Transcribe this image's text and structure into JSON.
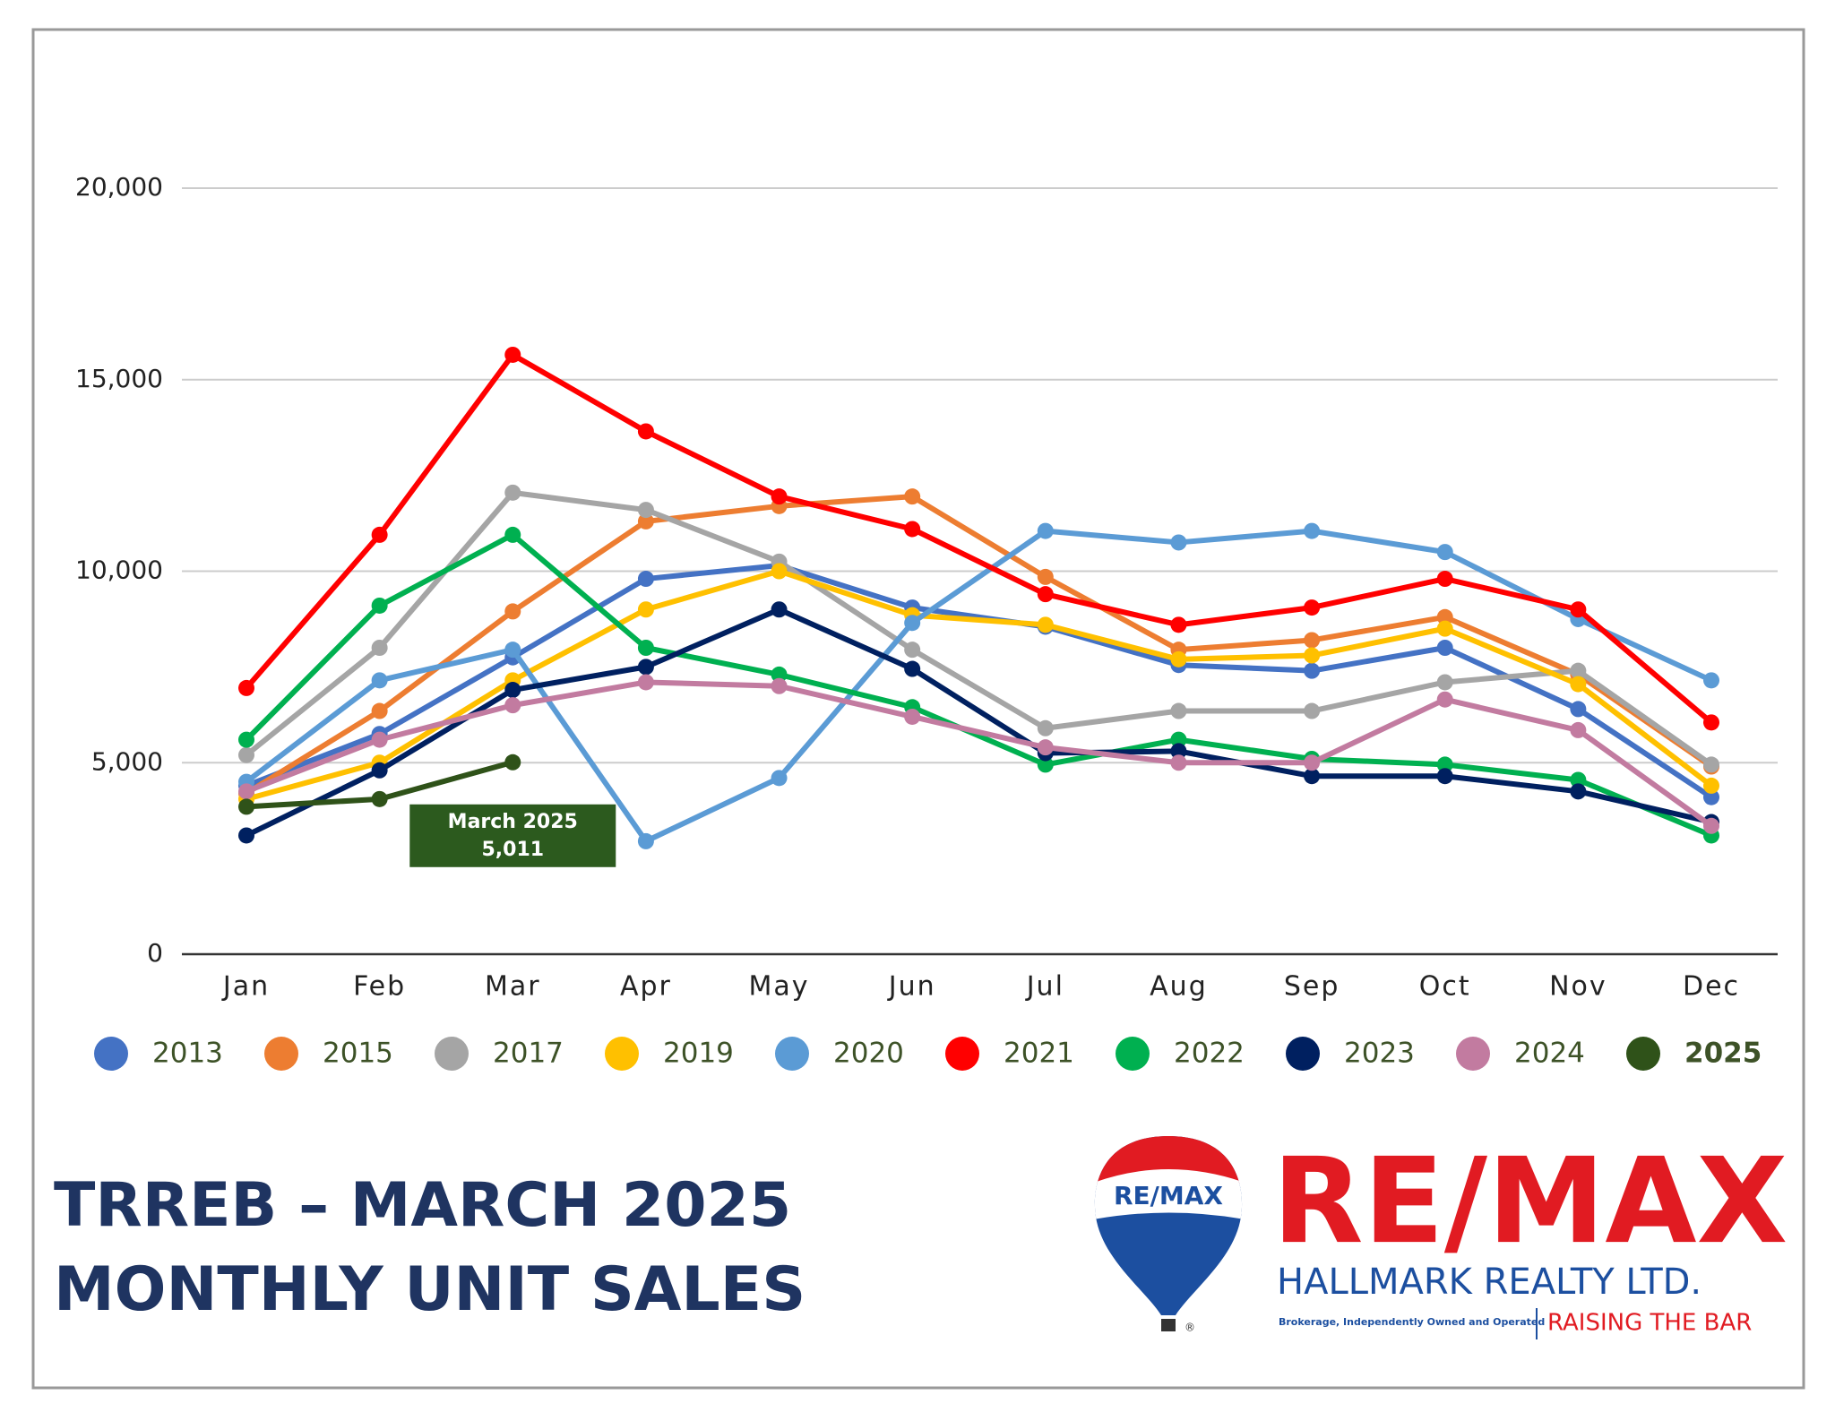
{
  "chart_data": {
    "type": "line",
    "categories": [
      "Jan",
      "Feb",
      "Mar",
      "Apr",
      "May",
      "Jun",
      "Jul",
      "Aug",
      "Sep",
      "Oct",
      "Nov",
      "Dec"
    ],
    "ylim": [
      0,
      20000
    ],
    "yticks": [
      0,
      {
        "value": 5000,
        "label": "5,000"
      },
      {
        "value": 10000,
        "label": "10,000"
      },
      {
        "value": 15000,
        "label": "15,000"
      },
      {
        "value": 20000,
        "label": "20,000"
      }
    ],
    "grid": true,
    "legend": "bottom",
    "series": [
      {
        "name": "2013",
        "color": "#4472c4",
        "values": [
          4400,
          5750,
          7750,
          9800,
          10150,
          9050,
          8550,
          7550,
          7400,
          8000,
          6400,
          4100
        ]
      },
      {
        "name": "2015",
        "color": "#ed7d31",
        "values": [
          4200,
          6350,
          8950,
          11300,
          11700,
          11950,
          9850,
          7950,
          8200,
          8800,
          7300,
          4900
        ]
      },
      {
        "name": "2017",
        "color": "#a5a5a5",
        "values": [
          5200,
          8000,
          12050,
          11600,
          10250,
          7950,
          5900,
          6350,
          6350,
          7100,
          7400,
          4950
        ]
      },
      {
        "name": "2019",
        "color": "#ffc000",
        "values": [
          4050,
          5000,
          7150,
          9000,
          10000,
          8850,
          8600,
          7700,
          7800,
          8500,
          7050,
          4400
        ]
      },
      {
        "name": "2020",
        "color": "#5b9bd5",
        "values": [
          4500,
          7150,
          7950,
          2950,
          4600,
          8650,
          11050,
          10750,
          11050,
          10500,
          8750,
          7150
        ]
      },
      {
        "name": "2021",
        "color": "#ff0000",
        "values": [
          6950,
          10950,
          15650,
          13650,
          11950,
          11100,
          9400,
          8600,
          9050,
          9800,
          9000,
          6050
        ]
      },
      {
        "name": "2022",
        "color": "#00b050",
        "values": [
          5600,
          9100,
          10950,
          8000,
          7300,
          6450,
          4950,
          5600,
          5100,
          4950,
          4550,
          3100
        ]
      },
      {
        "name": "2023",
        "color": "#002060",
        "values": [
          3100,
          4800,
          6900,
          7500,
          9000,
          7450,
          5250,
          5300,
          4650,
          4650,
          4250,
          3450
        ]
      },
      {
        "name": "2024",
        "color": "#c27ba0",
        "values": [
          4250,
          5600,
          6500,
          7100,
          7000,
          6200,
          5400,
          5000,
          5000,
          6650,
          5850,
          3350
        ]
      },
      {
        "name": "2025",
        "color": "#2f5219",
        "values": [
          3850,
          4050,
          5011,
          null,
          null,
          null,
          null,
          null,
          null,
          null,
          null,
          null
        ],
        "value_labels": [
          null,
          null,
          "5,011",
          null,
          null,
          null,
          null,
          null,
          null,
          null,
          null,
          null
        ]
      }
    ],
    "annotation": "March 2025"
  },
  "header": {
    "title_lines": [
      "TRREB – MARCH 2025",
      "MONTHLY UNIT SALES"
    ]
  },
  "branding": {
    "balloon_text": "RE/MAX",
    "registered": "®",
    "logo": "RE/MAX",
    "company": "HALLMARK REALTY LTD.",
    "tagline_left": "Brokerage, Independently Owned and Operated",
    "tagline_right": "RAISING THE BAR"
  }
}
